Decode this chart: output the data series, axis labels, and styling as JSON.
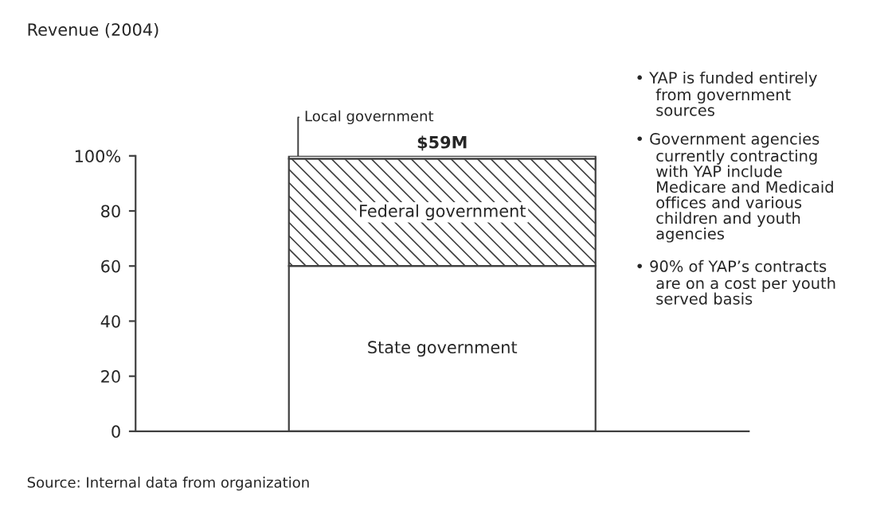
{
  "chart_data": {
    "type": "bar",
    "stacked": true,
    "categories": [
      null
    ],
    "series": [
      {
        "name": "State government",
        "color": "#ffffff",
        "values": [
          60
        ]
      },
      {
        "name": "Federal government",
        "color": "#404040",
        "values": [
          39
        ]
      },
      {
        "name": "Local government",
        "color": "#ffffff",
        "values": [
          1
        ]
      }
    ],
    "ylim": [
      0,
      100
    ],
    "yticks": [
      0,
      20,
      40,
      60,
      80,
      {
        "value": 100,
        "label": "100%"
      }
    ],
    "legend": false,
    "grid": false,
    "annotations": [
      "Revenue (2004)",
      {
        "text": "$59M",
        "y": 100
      },
      "• YAP is funded entirely\nfrom government\nsources",
      "• Government agencies\ncurrently contracting\nwith YAP include\nMedicare and Medicaid\noffices and various\nchildren and youth\nagencies",
      "• 90% of YAP’s contracts\nare on a cost per youth\nserved basis",
      "Source: Internal data from organization"
    ]
  }
}
